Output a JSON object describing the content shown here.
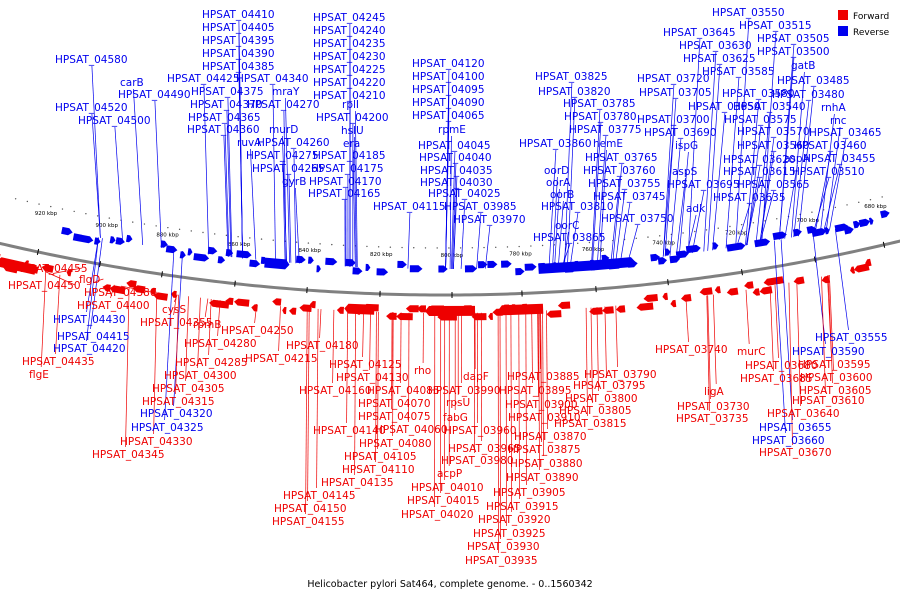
{
  "caption": "Helicobacter pylori Sat464, complete genome. - 0..1560342",
  "legend": [
    {
      "label": "Forward",
      "color": "#ee0000"
    },
    {
      "label": "Reverse",
      "color": "#0000ee"
    }
  ],
  "colors": {
    "forward": "#ee0000",
    "reverse": "#0000ee",
    "backbone": "#808080"
  },
  "ticks": [
    "920 kbp",
    "900 kbp",
    "880 kbp",
    "860 kbp",
    "840 kbp",
    "820 kbp",
    "800 kbp",
    "780 kbp",
    "760 kbp",
    "740 kbp",
    "720 kbp",
    "700 kbp",
    "680 kbp"
  ],
  "reverse_labels": [
    "HPSAT_04580",
    "carB",
    "HPSAT_04490",
    "HPSAT_04520",
    "HPSAT_04500",
    "HPSAT_04410",
    "HPSAT_04405",
    "HPSAT_04395",
    "HPSAT_04390",
    "HPSAT_04385",
    "HPSAT_04425",
    "HPSAT_04375",
    "HPSAT_04370",
    "HPSAT_04365",
    "HPSAT_04360",
    "ruvA",
    "HPSAT_04340",
    "mraY",
    "HPSAT_04270",
    "murD",
    "HPSAT_04260",
    "HPSAT_04275",
    "HPSAT_04265",
    "gyrB",
    "HPSAT_04245",
    "HPSAT_04240",
    "HPSAT_04235",
    "HPSAT_04230",
    "HPSAT_04225",
    "HPSAT_04220",
    "HPSAT_04210",
    "rplI",
    "HPSAT_04200",
    "hslU",
    "era",
    "HPSAT_04185",
    "HPSAT_04175",
    "HPSAT_04170",
    "HPSAT_04165",
    "HPSAT_04120",
    "HPSAT_04100",
    "HPSAT_04095",
    "HPSAT_04090",
    "HPSAT_04065",
    "rpmE",
    "HPSAT_04045",
    "HPSAT_04040",
    "HPSAT_04035",
    "HPSAT_04030",
    "HPSAT_04025",
    "HPSAT_04115",
    "HPSAT_03985",
    "HPSAT_03970",
    "HPSAT_03825",
    "HPSAT_03820",
    "HPSAT_03785",
    "HPSAT_03780",
    "HPSAT_03775",
    "HPSAT_03860",
    "hemE",
    "HPSAT_03765",
    "oorD",
    "HPSAT_03760",
    "oorA",
    "HPSAT_03755",
    "oorB",
    "HPSAT_03745",
    "HPSAT_03810",
    "HPSAT_03750",
    "oorC",
    "HPSAT_03865",
    "HPSAT_03550",
    "HPSAT_03515",
    "HPSAT_03645",
    "HPSAT_03505",
    "HPSAT_03630",
    "HPSAT_03500",
    "HPSAT_03625",
    "gatB",
    "HPSAT_03720",
    "HPSAT_03585",
    "HPSAT_03485",
    "HPSAT_03705",
    "HPSAT_03580",
    "HPSAT_03480",
    "HPSAT_03650",
    "HPSAT_03540",
    "rnhA",
    "HPSAT_03700",
    "HPSAT_03575",
    "rnc",
    "HPSAT_03690",
    "HPSAT_03570",
    "HPSAT_03465",
    "ispG",
    "HPSAT_03560",
    "HPSAT_03460",
    "HPSAT_03620",
    "aspA",
    "HPSAT_03455",
    "aspS",
    "HPSAT_03615",
    "HPSAT_03510",
    "HPSAT_03695",
    "HPSAT_03565",
    "adk",
    "HPSAT_03635",
    "HPSAT_04430",
    "HPSAT_04415",
    "HPSAT_04420",
    "HPSAT_04320",
    "HPSAT_04325",
    "HPSAT_03555",
    "HPSAT_03590",
    "HPSAT_03655",
    "HPSAT_03660"
  ],
  "forward_labels": [
    "HPSAT_04455",
    "HPSAT_04450",
    "flgD",
    "HPSAT_04380",
    "HPSAT_04400",
    "cysS",
    "HPSAT_04355",
    "HPSAT_04435",
    "flgE",
    "rpmB",
    "HPSAT_04250",
    "HPSAT_04280",
    "HPSAT_04285",
    "HPSAT_04215",
    "HPSAT_04300",
    "HPSAT_04305",
    "HPSAT_04315",
    "HPSAT_04330",
    "HPSAT_04345",
    "HPSAT_04180",
    "HPSAT_04125",
    "HPSAT_04130",
    "HPSAT_04160",
    "HPSAT_04085",
    "HPSAT_04070",
    "HPSAT_04075",
    "HPSAT_04140",
    "HPSAT_04060",
    "HPSAT_04080",
    "HPSAT_04105",
    "HPSAT_04110",
    "HPSAT_04135",
    "HPSAT_04145",
    "HPSAT_04150",
    "HPSAT_04155",
    "rho",
    "dapF",
    "HPSAT_03990",
    "rpsU",
    "fabG",
    "HPSAT_03960",
    "HPSAT_03965",
    "HPSAT_03980",
    "acpP",
    "HPSAT_04010",
    "HPSAT_04015",
    "HPSAT_04020",
    "HPSAT_03885",
    "HPSAT_03895",
    "HPSAT_03900",
    "HPSAT_03910",
    "HPSAT_03870",
    "HPSAT_03875",
    "HPSAT_03880",
    "HPSAT_03890",
    "HPSAT_03905",
    "HPSAT_03915",
    "HPSAT_03920",
    "HPSAT_03925",
    "HPSAT_03930",
    "HPSAT_03935",
    "HPSAT_03790",
    "HPSAT_03795",
    "HPSAT_03800",
    "HPSAT_03805",
    "HPSAT_03815",
    "HPSAT_03740",
    "ligA",
    "HPSAT_03730",
    "HPSAT_03735",
    "murC",
    "HPSAT_03680",
    "HPSAT_03685",
    "HPSAT_03595",
    "HPSAT_03600",
    "HPSAT_03605",
    "HPSAT_03610",
    "HPSAT_03640",
    "HPSAT_03670"
  ]
}
